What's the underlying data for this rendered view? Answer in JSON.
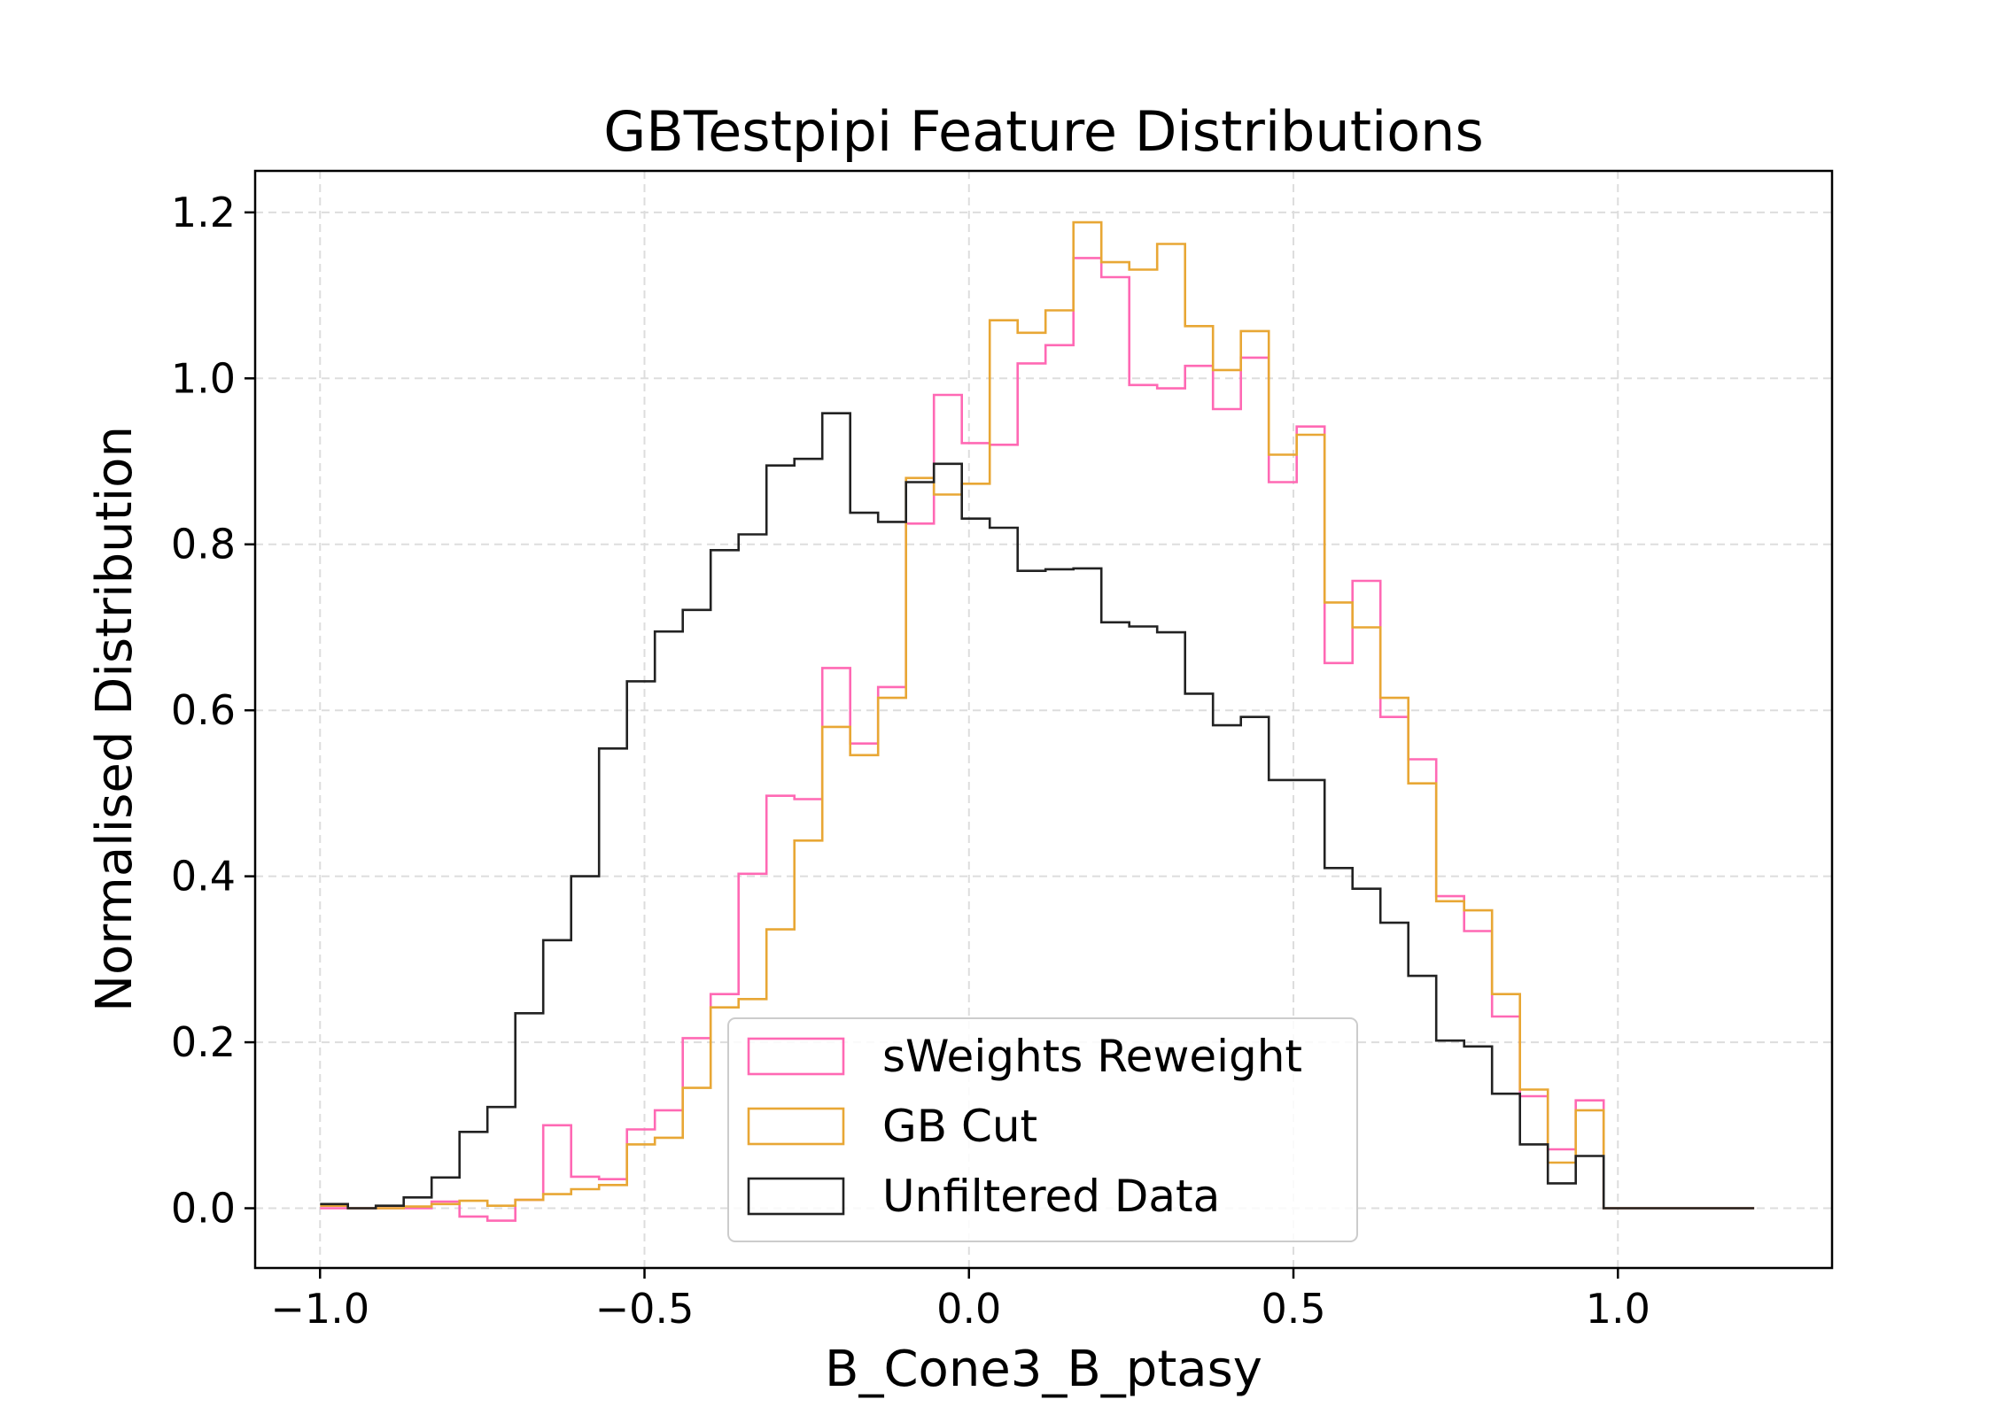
{
  "chart_data": {
    "type": "step-histogram",
    "title": "GBTestpipi Feature Distributions",
    "xlabel": "B_Cone3_B_ptasy",
    "ylabel": "Normalised Distribution",
    "xlim": [
      -1.1,
      1.33
    ],
    "ylim": [
      -0.072,
      1.25
    ],
    "xticks": [
      -1.0,
      -0.5,
      0.0,
      0.5,
      1.0
    ],
    "xtick_labels": [
      "−1.0",
      "−0.5",
      "0.0",
      "0.5",
      "1.0"
    ],
    "yticks": [
      0.0,
      0.2,
      0.4,
      0.6,
      0.8,
      1.0,
      1.2
    ],
    "ytick_labels": [
      "0.0",
      "0.2",
      "0.4",
      "0.6",
      "0.8",
      "1.0",
      "1.2"
    ],
    "grid": true,
    "legend_position": "lower center",
    "bin_edges": [
      -1.0,
      -0.957,
      -0.914,
      -0.871,
      -0.828,
      -0.785,
      -0.742,
      -0.699,
      -0.656,
      -0.613,
      -0.57,
      -0.527,
      -0.484,
      -0.441,
      -0.398,
      -0.355,
      -0.312,
      -0.269,
      -0.226,
      -0.183,
      -0.14,
      -0.097,
      -0.054,
      -0.011,
      0.032,
      0.075,
      0.118,
      0.161,
      0.204,
      0.247,
      0.29,
      0.333,
      0.376,
      0.419,
      0.462,
      0.505,
      0.548,
      0.591,
      0.634,
      0.677,
      0.72,
      0.763,
      0.806,
      0.849,
      0.892,
      0.935,
      0.978,
      1.021,
      1.064,
      1.107,
      1.15,
      1.21
    ],
    "series": [
      {
        "name": "sWeights Reweight",
        "color": "#ff69b4",
        "values": [
          0.0,
          0.0,
          0.0,
          0.0,
          0.008,
          -0.01,
          -0.015,
          0.01,
          0.1,
          0.038,
          0.035,
          0.095,
          0.118,
          0.205,
          0.258,
          0.403,
          0.497,
          0.493,
          0.651,
          0.56,
          0.628,
          0.825,
          0.98,
          0.922,
          0.92,
          1.018,
          1.04,
          1.145,
          1.122,
          0.992,
          0.988,
          1.015,
          0.963,
          1.025,
          0.875,
          0.942,
          0.657,
          0.756,
          0.592,
          0.541,
          0.376,
          0.334,
          0.231,
          0.135,
          0.071,
          0.13,
          0.0,
          0.0,
          0.0,
          0.0,
          0.0
        ]
      },
      {
        "name": "GB Cut",
        "color": "#e8a735",
        "values": [
          0.003,
          0.0,
          0.0,
          0.002,
          0.005,
          0.009,
          0.003,
          0.01,
          0.017,
          0.023,
          0.028,
          0.077,
          0.085,
          0.145,
          0.242,
          0.252,
          0.336,
          0.443,
          0.58,
          0.546,
          0.615,
          0.88,
          0.86,
          0.873,
          1.07,
          1.055,
          1.082,
          1.188,
          1.14,
          1.131,
          1.162,
          1.063,
          1.01,
          1.057,
          0.908,
          0.932,
          0.73,
          0.7,
          0.615,
          0.512,
          0.37,
          0.359,
          0.258,
          0.143,
          0.055,
          0.118,
          0.0,
          0.0,
          0.0,
          0.0,
          0.0
        ]
      },
      {
        "name": "Unfiltered Data",
        "color": "#222222",
        "values": [
          0.005,
          0.0,
          0.003,
          0.013,
          0.037,
          0.092,
          0.122,
          0.235,
          0.323,
          0.4,
          0.554,
          0.635,
          0.695,
          0.721,
          0.793,
          0.812,
          0.895,
          0.903,
          0.958,
          0.838,
          0.827,
          0.875,
          0.897,
          0.831,
          0.82,
          0.768,
          0.77,
          0.771,
          0.706,
          0.701,
          0.694,
          0.62,
          0.582,
          0.592,
          0.516,
          0.516,
          0.41,
          0.385,
          0.344,
          0.28,
          0.202,
          0.195,
          0.138,
          0.077,
          0.03,
          0.063,
          0.0,
          0.0,
          0.0,
          0.0,
          0.0
        ]
      }
    ]
  }
}
